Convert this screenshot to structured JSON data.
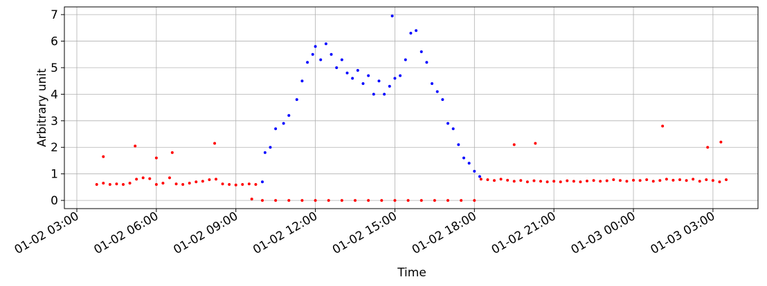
{
  "chart_data": {
    "type": "scatter",
    "xlabel": "Time",
    "ylabel": "Arbitrary unit",
    "grid": true,
    "xlim": [
      2.53,
      28.7
    ],
    "ylim": [
      -0.31,
      7.29
    ],
    "xticks": [
      {
        "value": 3,
        "label": "01-02 03:00"
      },
      {
        "value": 6,
        "label": "01-02 06:00"
      },
      {
        "value": 9,
        "label": "01-02 09:00"
      },
      {
        "value": 12,
        "label": "01-02 12:00"
      },
      {
        "value": 15,
        "label": "01-02 15:00"
      },
      {
        "value": 18,
        "label": "01-02 18:00"
      },
      {
        "value": 21,
        "label": "01-02 21:00"
      },
      {
        "value": 24,
        "label": "01-03 00:00"
      },
      {
        "value": 27,
        "label": "01-03 03:00"
      }
    ],
    "yticks": [
      0,
      1,
      2,
      3,
      4,
      5,
      6,
      7
    ],
    "series": [
      {
        "color": "#0000ff",
        "x": [
          10.0,
          10.1,
          10.3,
          10.5,
          10.8,
          11.0,
          11.3,
          11.5,
          11.7,
          11.9,
          12.0,
          12.2,
          12.4,
          12.6,
          12.8,
          13.0,
          13.2,
          13.4,
          13.6,
          13.8,
          14.0,
          14.2,
          14.4,
          14.6,
          14.8,
          15.0,
          15.2,
          15.4,
          15.6,
          15.8,
          16.0,
          16.2,
          16.4,
          16.6,
          16.8,
          17.0,
          17.2,
          17.4,
          17.6,
          17.8,
          18.0,
          18.2,
          14.9
        ],
        "values": [
          0.7,
          1.8,
          2.0,
          2.7,
          2.9,
          3.2,
          3.8,
          4.5,
          5.2,
          5.5,
          5.8,
          5.3,
          5.9,
          5.5,
          5.0,
          5.3,
          4.8,
          4.6,
          4.9,
          4.4,
          4.7,
          4.0,
          4.5,
          4.0,
          4.3,
          4.6,
          4.7,
          5.3,
          6.3,
          6.4,
          5.6,
          5.2,
          4.4,
          4.1,
          3.8,
          2.9,
          2.7,
          2.1,
          1.6,
          1.4,
          1.1,
          0.9,
          6.95
        ]
      },
      {
        "color": "#ff0000",
        "x": [
          3.75,
          4.0,
          4.25,
          4.5,
          4.75,
          5.0,
          5.25,
          5.5,
          5.75,
          6.0,
          6.25,
          6.5,
          6.75,
          7.0,
          7.25,
          7.5,
          7.75,
          8.0,
          8.25,
          8.5,
          8.75,
          9.0,
          9.25,
          9.5,
          9.75,
          10.0,
          10.5,
          11.0,
          11.5,
          12.0,
          12.5,
          13.0,
          13.5,
          14.0,
          14.5,
          15.0,
          15.5,
          16.0,
          16.5,
          17.0,
          17.5,
          18.0,
          18.25,
          18.5,
          18.75,
          19.0,
          19.25,
          19.5,
          19.75,
          20.0,
          20.25,
          20.5,
          20.75,
          21.0,
          21.25,
          21.5,
          21.75,
          22.0,
          22.25,
          22.5,
          22.75,
          23.0,
          23.25,
          23.5,
          23.75,
          24.0,
          24.25,
          24.5,
          24.75,
          25.0,
          25.25,
          25.5,
          25.75,
          26.0,
          26.25,
          26.5,
          26.75,
          27.0,
          27.25,
          27.5,
          4.0,
          5.2,
          6.0,
          6.6,
          8.2,
          9.6,
          19.5,
          20.3,
          25.1,
          26.8,
          27.3
        ],
        "values": [
          0.6,
          0.65,
          0.6,
          0.62,
          0.6,
          0.65,
          0.8,
          0.85,
          0.82,
          0.6,
          0.65,
          0.85,
          0.62,
          0.6,
          0.65,
          0.7,
          0.72,
          0.78,
          0.8,
          0.62,
          0.6,
          0.58,
          0.6,
          0.62,
          0.6,
          0,
          0,
          0,
          0,
          0,
          0,
          0,
          0,
          0,
          0,
          0,
          0,
          0,
          0,
          0,
          0,
          0,
          0.8,
          0.78,
          0.75,
          0.8,
          0.76,
          0.72,
          0.75,
          0.7,
          0.74,
          0.72,
          0.7,
          0.72,
          0.7,
          0.74,
          0.72,
          0.7,
          0.73,
          0.75,
          0.72,
          0.74,
          0.78,
          0.75,
          0.72,
          0.76,
          0.75,
          0.78,
          0.72,
          0.75,
          0.8,
          0.76,
          0.78,
          0.75,
          0.8,
          0.72,
          0.78,
          0.75,
          0.7,
          0.78,
          1.65,
          2.05,
          1.6,
          1.8,
          2.15,
          0.05,
          2.1,
          2.15,
          2.8,
          2.0,
          2.2
        ]
      }
    ]
  }
}
